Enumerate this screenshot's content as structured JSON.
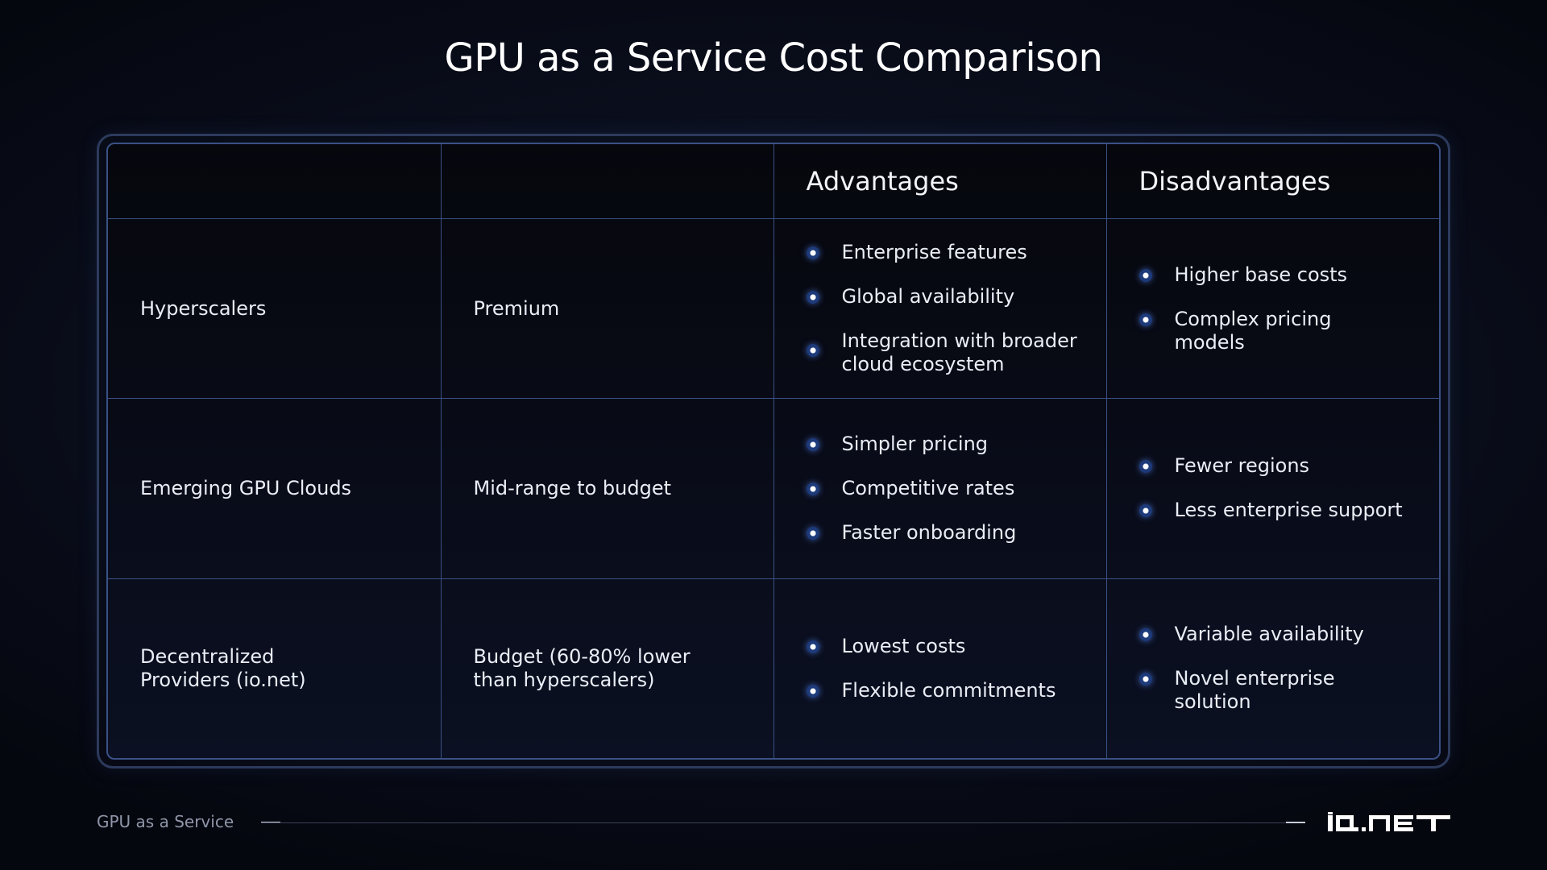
{
  "title": "GPU as a Service Cost Comparison",
  "table": {
    "headers": [
      "",
      "",
      "Advantages",
      "Disadvantages"
    ],
    "rows": [
      {
        "provider": "Hyperscalers",
        "tier": "Premium",
        "advantages": [
          "Enterprise features",
          "Global availability",
          "Integration with broader cloud ecosystem"
        ],
        "disadvantages": [
          "Higher base costs",
          "Complex pricing models"
        ]
      },
      {
        "provider": "Emerging GPU Clouds",
        "tier": "Mid-range to budget",
        "advantages": [
          "Simpler pricing",
          "Competitive rates",
          "Faster onboarding"
        ],
        "disadvantages": [
          "Fewer regions",
          "Less enterprise support"
        ]
      },
      {
        "provider": "Decentralized Providers (io.net)",
        "tier": "Budget (60-80% lower than hyperscalers)",
        "advantages": [
          "Lowest costs",
          "Flexible commitments"
        ],
        "disadvantages": [
          "Variable availability",
          "Novel enterprise solution"
        ]
      }
    ]
  },
  "footer": {
    "label": "GPU as a Service",
    "logo": "IO.NET"
  }
}
